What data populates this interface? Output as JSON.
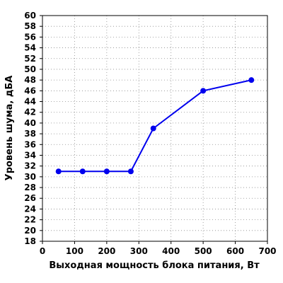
{
  "chart_data": {
    "type": "line",
    "title": "",
    "xlabel": "Выходная мощность блока питания, Вт",
    "ylabel": "Уровень шума, дБА",
    "xlim": [
      0,
      700
    ],
    "ylim": [
      18,
      60
    ],
    "x_ticks": [
      0,
      100,
      200,
      300,
      400,
      500,
      600,
      700
    ],
    "y_ticks": [
      18,
      20,
      22,
      24,
      26,
      28,
      30,
      32,
      34,
      36,
      38,
      40,
      42,
      44,
      46,
      48,
      50,
      52,
      54,
      56,
      58,
      60
    ],
    "x_tick_labels": [
      "0",
      "100",
      "200",
      "300",
      "400",
      "500",
      "600",
      "700"
    ],
    "y_tick_labels": [
      "18",
      "20",
      "22",
      "24",
      "26",
      "28",
      "30",
      "32",
      "34",
      "36",
      "38",
      "40",
      "42",
      "44",
      "46",
      "48",
      "50",
      "52",
      "54",
      "56",
      "58",
      "60"
    ],
    "grid": true,
    "grid_style": "dotted",
    "legend": "none",
    "series": [
      {
        "color": "#0000ee",
        "marker": "circle",
        "x": [
          50,
          125,
          200,
          275,
          345,
          500,
          650
        ],
        "y": [
          31,
          31,
          31,
          31,
          39,
          46,
          48
        ]
      }
    ]
  }
}
